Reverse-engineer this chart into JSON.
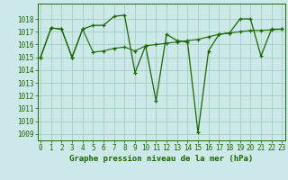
{
  "line1_x": [
    0,
    1,
    2,
    3,
    4,
    5,
    6,
    7,
    8,
    9,
    10,
    11,
    12,
    13,
    14,
    15,
    16,
    17,
    18,
    19,
    20,
    21,
    22,
    23
  ],
  "line1_y": [
    1015.0,
    1017.3,
    1017.2,
    1015.0,
    1017.2,
    1017.5,
    1017.5,
    1018.2,
    1018.3,
    1013.8,
    1015.9,
    1011.6,
    1016.8,
    1016.3,
    1016.2,
    1009.1,
    1015.5,
    1016.8,
    1016.9,
    1018.0,
    1018.0,
    1015.1,
    1017.2,
    1017.2
  ],
  "line2_x": [
    0,
    1,
    2,
    3,
    4,
    5,
    6,
    7,
    8,
    9,
    10,
    11,
    12,
    13,
    14,
    15,
    16,
    17,
    18,
    19,
    20,
    21,
    22,
    23
  ],
  "line2_y": [
    1015.0,
    1017.3,
    1017.2,
    1015.0,
    1017.2,
    1015.4,
    1015.5,
    1015.7,
    1015.8,
    1015.5,
    1015.9,
    1016.0,
    1016.1,
    1016.2,
    1016.3,
    1016.4,
    1016.6,
    1016.8,
    1016.9,
    1017.0,
    1017.1,
    1017.1,
    1017.15,
    1017.2
  ],
  "line_color": "#1a6600",
  "bg_color": "#cce8e8",
  "grid_color": "#99ccbb",
  "xlabel": "Graphe pression niveau de la mer (hPa)",
  "ylim": [
    1008.5,
    1019.2
  ],
  "yticks": [
    1009,
    1010,
    1011,
    1012,
    1013,
    1014,
    1015,
    1016,
    1017,
    1018
  ],
  "xticks": [
    0,
    1,
    2,
    3,
    4,
    5,
    6,
    7,
    8,
    9,
    10,
    11,
    12,
    13,
    14,
    15,
    16,
    17,
    18,
    19,
    20,
    21,
    22,
    23
  ],
  "tick_fontsize": 5.5,
  "xlabel_fontsize": 6.5
}
